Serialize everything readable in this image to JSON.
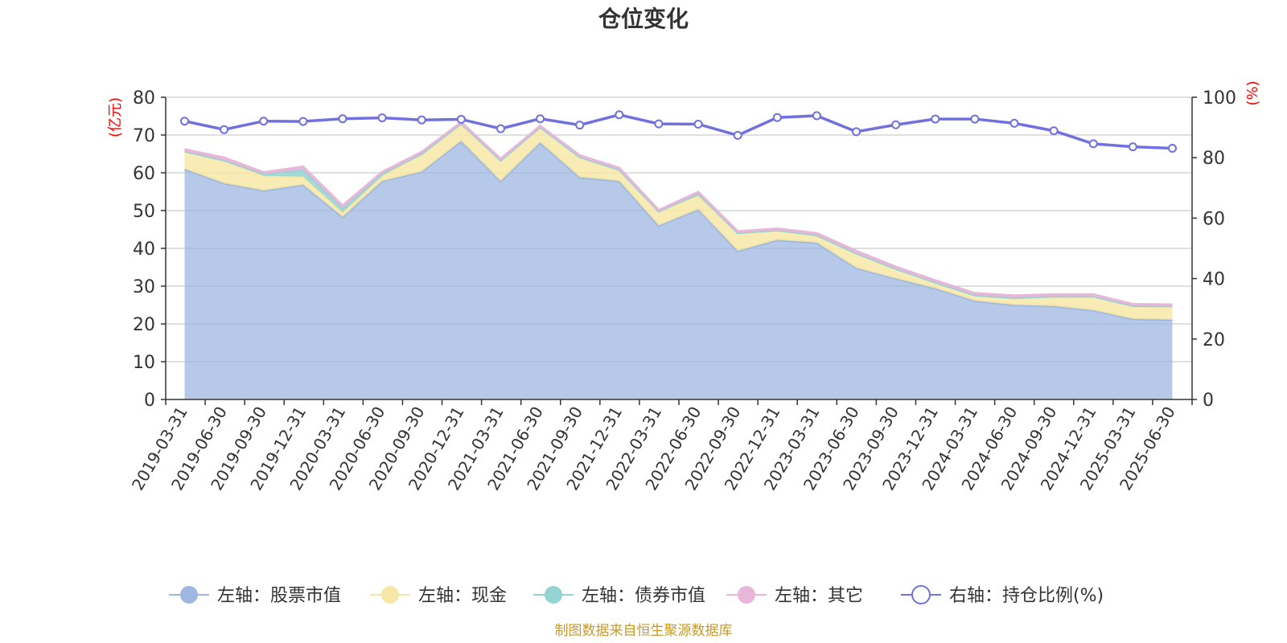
{
  "chart_data": {
    "type": "area",
    "title": "仓位变化",
    "left_axis_unit": "(亿元)",
    "right_axis_unit": "(%)",
    "ylim_left": [
      0,
      80
    ],
    "ylim_right": [
      0,
      100
    ],
    "left_ticks": [
      "0",
      "10",
      "20",
      "30",
      "40",
      "50",
      "60",
      "70",
      "80"
    ],
    "right_ticks": [
      "0",
      "20",
      "40",
      "60",
      "80",
      "100"
    ],
    "grid": true,
    "legend_position": "bottom",
    "x": [
      "2019-03-31",
      "2019-06-30",
      "2019-09-30",
      "2019-12-31",
      "2020-03-31",
      "2020-06-30",
      "2020-09-30",
      "2020-12-31",
      "2021-03-31",
      "2021-06-30",
      "2021-09-30",
      "2021-12-31",
      "2022-03-31",
      "2022-06-30",
      "2022-09-30",
      "2022-12-31",
      "2023-03-31",
      "2023-06-30",
      "2023-09-30",
      "2023-12-31",
      "2024-03-31",
      "2024-06-30",
      "2024-09-30",
      "2024-12-31",
      "2025-03-31",
      "2025-06-30"
    ],
    "series": [
      {
        "name": "左轴：股票市值",
        "axis": "left",
        "stack": true,
        "color": "#9db7e0",
        "values": [
          61.0,
          57.2,
          55.3,
          56.8,
          48.3,
          57.8,
          60.3,
          68.4,
          57.8,
          68.0,
          58.8,
          57.8,
          46.0,
          50.3,
          39.3,
          42.2,
          41.5,
          34.8,
          32.0,
          29.4,
          26.1,
          25.0,
          24.7,
          23.6,
          21.3,
          21.1
        ]
      },
      {
        "name": "左轴：现金",
        "axis": "left",
        "stack": true,
        "color": "#f7e7a6",
        "values": [
          4.7,
          6.1,
          3.9,
          2.2,
          1.2,
          1.4,
          4.7,
          4.3,
          5.5,
          4.1,
          5.4,
          3.0,
          3.8,
          3.6,
          4.8,
          2.6,
          2.0,
          3.9,
          2.6,
          1.6,
          1.5,
          1.9,
          2.6,
          3.7,
          3.5,
          3.6
        ]
      },
      {
        "name": "左轴：债券市值",
        "axis": "left",
        "stack": true,
        "color": "#95d3d3",
        "values": [
          0.0,
          0.0,
          0.5,
          1.8,
          1.1,
          0.6,
          0.0,
          0.4,
          0.0,
          0.0,
          0.0,
          0.0,
          0.0,
          0.6,
          0.0,
          0.0,
          0.0,
          0.0,
          0.0,
          0.0,
          0.0,
          0.0,
          0.0,
          0.0,
          0.0,
          0.0
        ]
      },
      {
        "name": "左轴：其它",
        "axis": "left",
        "stack": true,
        "color": "#e8b6d8",
        "values": [
          0.5,
          0.7,
          0.4,
          0.8,
          0.7,
          0.4,
          0.5,
          0.3,
          0.4,
          0.3,
          0.4,
          0.5,
          0.3,
          0.4,
          0.4,
          0.4,
          0.5,
          0.6,
          0.5,
          0.5,
          0.5,
          0.6,
          0.5,
          0.5,
          0.4,
          0.4
        ]
      },
      {
        "name": "右轴：持仓比例(%)",
        "axis": "right",
        "stack": false,
        "color": "#7070e0",
        "values": [
          92.1,
          89.3,
          92.1,
          92.0,
          92.9,
          93.2,
          92.5,
          92.7,
          89.6,
          92.9,
          90.8,
          94.2,
          91.2,
          91.1,
          87.4,
          93.3,
          93.9,
          88.6,
          90.9,
          92.8,
          92.8,
          91.4,
          88.9,
          84.6,
          83.6,
          83.1
        ]
      }
    ],
    "source": "制图数据来自恒生聚源数据库"
  }
}
